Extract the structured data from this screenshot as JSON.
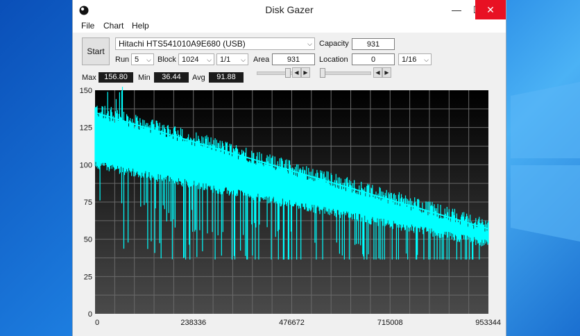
{
  "window": {
    "title": "Disk Gazer"
  },
  "titlebar_buttons": {
    "minimize": "—",
    "maximize": "☐",
    "close": "✕"
  },
  "menu": [
    "File",
    "Chart",
    "Help"
  ],
  "controls": {
    "start_label": "Start",
    "drive": "Hitachi HTS541010A9E680 (USB)",
    "capacity_label": "Capacity",
    "capacity_value": "931",
    "run_label": "Run",
    "run_value": "5",
    "block_label": "Block",
    "block_value": "1024",
    "ratio_value": "1/1",
    "area_label": "Area",
    "area_value": "931",
    "location_label": "Location",
    "location_value": "0",
    "location_fraction": "1/16"
  },
  "stats": {
    "max_label": "Max",
    "max_value": "156.80",
    "min_label": "Min",
    "min_value": "36.44",
    "avg_label": "Avg",
    "avg_value": "91.88"
  },
  "chart_data": {
    "type": "line",
    "background": "#000000",
    "series_color": "#00ffff",
    "grid": true,
    "ylim": [
      0,
      150
    ],
    "yticks": [
      "150",
      "125",
      "100",
      "75",
      "50",
      "25",
      "0"
    ],
    "xlim": [
      0,
      953344
    ],
    "xticks": [
      "0",
      "238336",
      "476672",
      "715008",
      "953344"
    ],
    "upper_start": 135,
    "upper_end": 57,
    "lower_start": 103,
    "lower_end": 50,
    "min": 36.44,
    "max": 156.8,
    "avg": 91.88
  }
}
